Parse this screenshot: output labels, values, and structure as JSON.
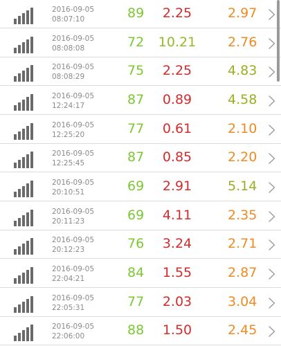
{
  "colors": {
    "v1": "#7cc832",
    "v2_red": "#d32b2b",
    "v2_olive": "#8fbc2a",
    "v3_orange": "#f08a22",
    "v3_olive": "#9aaf1f"
  },
  "rows": [
    {
      "date": "2016-09-05",
      "time": "08:07:10",
      "v1": "89",
      "v2": "2.25",
      "v2_color": "#d32b2b",
      "v3": "2.97",
      "v3_color": "#f08a22"
    },
    {
      "date": "2016-09-05",
      "time": "08:08:08",
      "v1": "72",
      "v2": "10.21",
      "v2_color": "#8fbc2a",
      "v3": "2.76",
      "v3_color": "#f08a22"
    },
    {
      "date": "2016-09-05",
      "time": "08:08:29",
      "v1": "75",
      "v2": "2.25",
      "v2_color": "#d32b2b",
      "v3": "4.83",
      "v3_color": "#9aaf1f"
    },
    {
      "date": "2016-09-05",
      "time": "12:24:17",
      "v1": "87",
      "v2": "0.89",
      "v2_color": "#d32b2b",
      "v3": "4.58",
      "v3_color": "#9aaf1f"
    },
    {
      "date": "2016-09-05",
      "time": "12:25:20",
      "v1": "77",
      "v2": "0.61",
      "v2_color": "#d32b2b",
      "v3": "2.10",
      "v3_color": "#f08a22"
    },
    {
      "date": "2016-09-05",
      "time": "12:25:45",
      "v1": "87",
      "v2": "0.85",
      "v2_color": "#d32b2b",
      "v3": "2.20",
      "v3_color": "#f08a22"
    },
    {
      "date": "2016-09-05",
      "time": "20:10:51",
      "v1": "69",
      "v2": "2.91",
      "v2_color": "#d32b2b",
      "v3": "5.14",
      "v3_color": "#9aaf1f"
    },
    {
      "date": "2016-09-05",
      "time": "20:11:23",
      "v1": "69",
      "v2": "4.11",
      "v2_color": "#d32b2b",
      "v3": "2.35",
      "v3_color": "#f08a22"
    },
    {
      "date": "2016-09-05",
      "time": "20:12:23",
      "v1": "76",
      "v2": "3.24",
      "v2_color": "#d32b2b",
      "v3": "2.71",
      "v3_color": "#f08a22"
    },
    {
      "date": "2016-09-05",
      "time": "22:04:21",
      "v1": "84",
      "v2": "1.55",
      "v2_color": "#d32b2b",
      "v3": "2.87",
      "v3_color": "#f08a22"
    },
    {
      "date": "2016-09-05",
      "time": "22:05:31",
      "v1": "77",
      "v2": "2.03",
      "v2_color": "#d32b2b",
      "v3": "3.04",
      "v3_color": "#f08a22"
    },
    {
      "date": "2016-09-05",
      "time": "22:06:00",
      "v1": "88",
      "v2": "1.50",
      "v2_color": "#d32b2b",
      "v3": "2.45",
      "v3_color": "#f08a22"
    }
  ],
  "icons": {
    "signal": "signal-strength-icon",
    "chevron": "chevron-right-icon"
  }
}
